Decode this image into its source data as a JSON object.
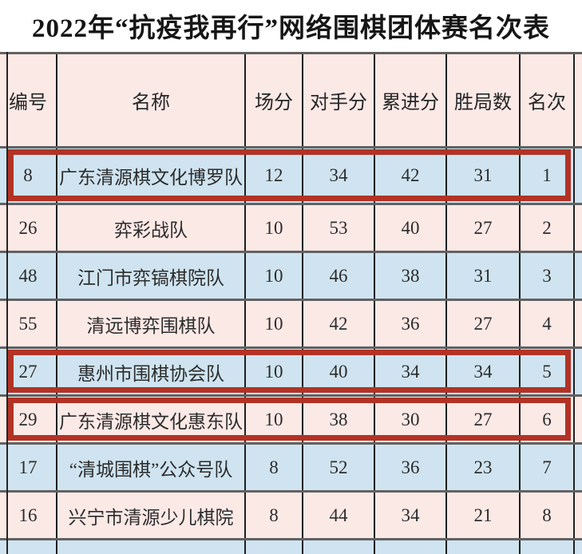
{
  "title": "2022年“抗疫我再行”网络围棋团体赛名次表",
  "colors": {
    "row_blue": "#cfe4f0",
    "row_pink": "#fbe9e6",
    "header_pink": "#fbe9e6",
    "highlight_border": "#b23325",
    "grid_line": "#1f1f1f",
    "separator_line": "#626262"
  },
  "table": {
    "columns": [
      "编号",
      "名称",
      "场分",
      "对手分",
      "累进分",
      "胜局数",
      "名次"
    ],
    "rows": [
      {
        "tone": "blue",
        "highlight": true,
        "cells": [
          "8",
          "广东清源棋文化博罗队",
          "12",
          "34",
          "42",
          "31",
          "1"
        ]
      },
      {
        "tone": "pink",
        "highlight": false,
        "cells": [
          "26",
          "弈彩战队",
          "10",
          "53",
          "40",
          "27",
          "2"
        ]
      },
      {
        "tone": "blue",
        "highlight": false,
        "cells": [
          "48",
          "江门市弈镐棋院队",
          "10",
          "46",
          "38",
          "31",
          "3"
        ]
      },
      {
        "tone": "pink",
        "highlight": false,
        "cells": [
          "55",
          "清远博弈围棋队",
          "10",
          "42",
          "36",
          "27",
          "4"
        ]
      },
      {
        "tone": "blue",
        "highlight": true,
        "cells": [
          "27",
          "惠州市围棋协会队",
          "10",
          "40",
          "34",
          "34",
          "5"
        ]
      },
      {
        "tone": "pink",
        "highlight": true,
        "cells": [
          "29",
          "广东清源棋文化惠东队",
          "10",
          "38",
          "30",
          "27",
          "6"
        ]
      },
      {
        "tone": "blue",
        "highlight": false,
        "cells": [
          "17",
          "“清城围棋”公众号队",
          "8",
          "52",
          "36",
          "23",
          "7"
        ]
      },
      {
        "tone": "pink",
        "highlight": false,
        "cells": [
          "16",
          "兴宁市清源少儿棋院",
          "8",
          "44",
          "34",
          "21",
          "8"
        ]
      }
    ],
    "partial_next_row_tone": "blue"
  }
}
